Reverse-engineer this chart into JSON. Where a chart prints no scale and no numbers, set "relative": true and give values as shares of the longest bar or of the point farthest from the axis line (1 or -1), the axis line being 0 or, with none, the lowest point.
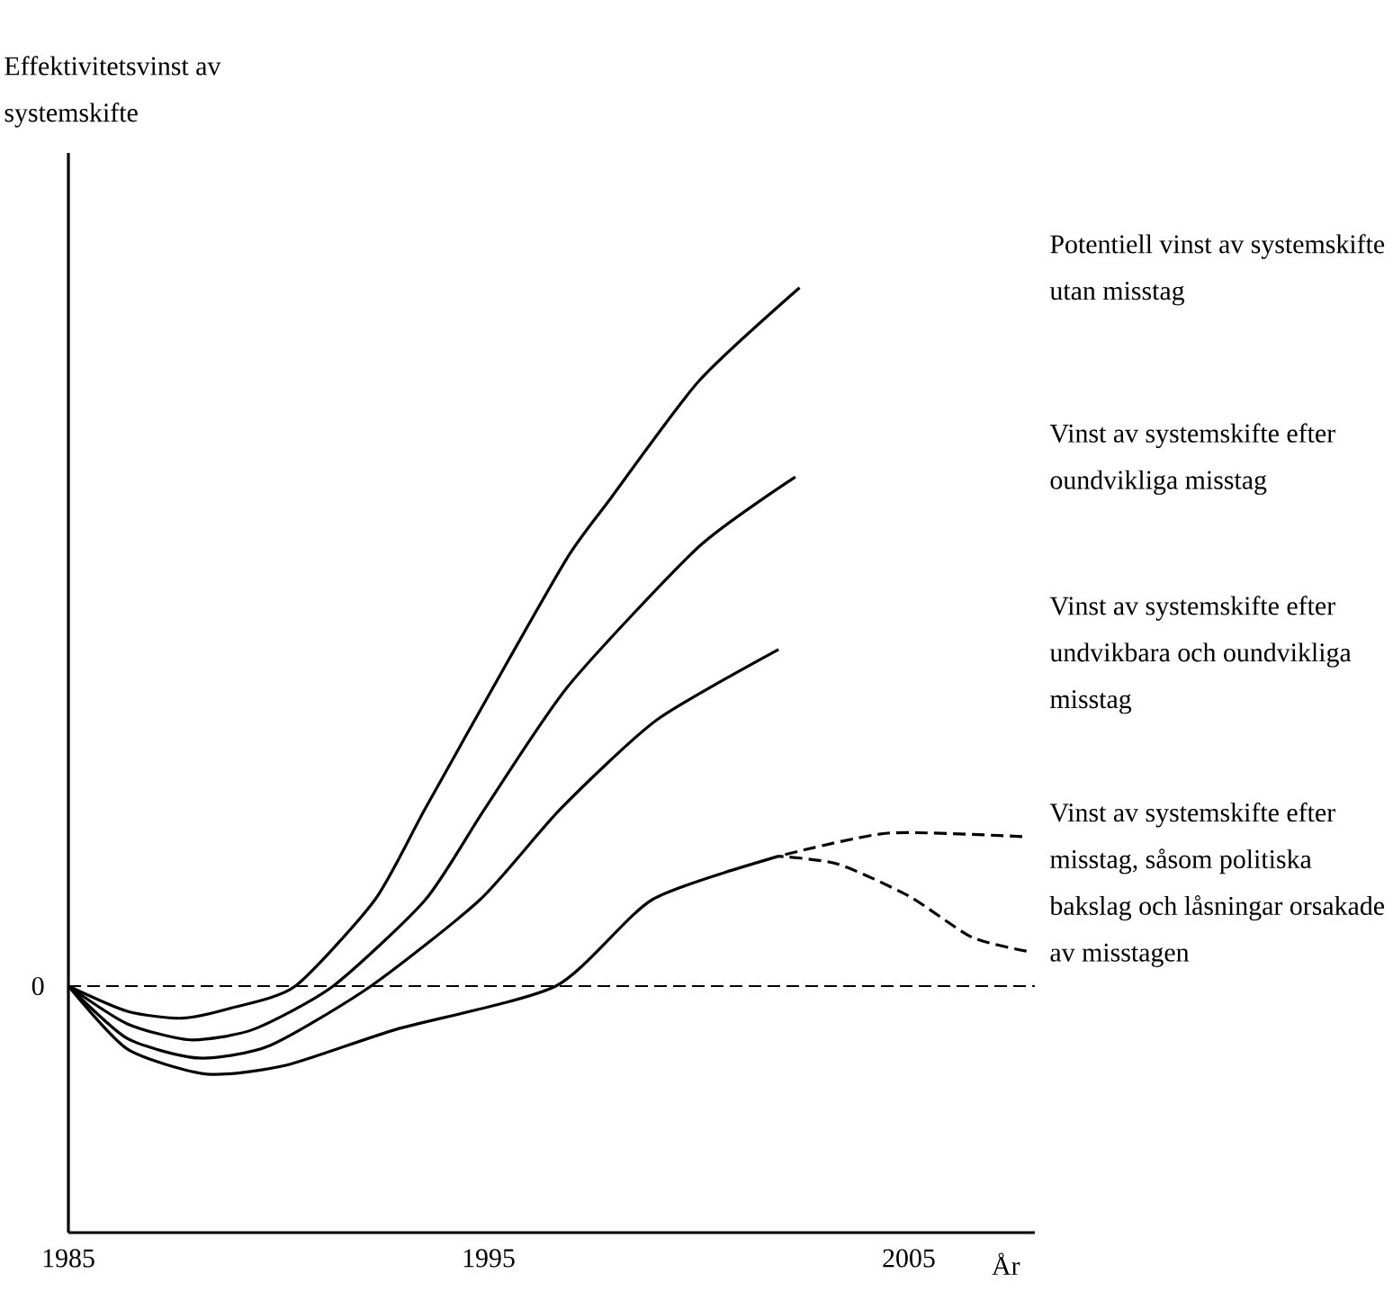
{
  "chart_data": {
    "type": "line",
    "annotations": [
      "Effektivitetsvinst av systemskifte"
    ],
    "xlabel": "År",
    "relative": true,
    "xlim": [
      1985,
      2008
    ],
    "xticks": [
      1985,
      1995,
      2005
    ],
    "ref_lines": [
      {
        "axis": "y",
        "value": 0,
        "label": "0",
        "line_style": "dashed"
      }
    ],
    "series": [
      {
        "name": "Potentiell vinst av systemskifte utan misstag",
        "color": "#000000",
        "line_style": "solid",
        "x": [
          1985,
          1986.4,
          1987.7,
          1988.9,
          1990.4,
          1992.3,
          1993.5,
          1995.4,
          1996.9,
          1997.9,
          2000,
          2002.4
        ],
        "values": [
          0,
          -0.036,
          -0.046,
          -0.031,
          0,
          0.124,
          0.255,
          0.459,
          0.616,
          0.698,
          0.866,
          1
        ]
      },
      {
        "name": "Vinst av systemskifte efter oundvikliga misstag",
        "color": "#000000",
        "line_style": "solid",
        "x": [
          1985,
          1986.4,
          1987.9,
          1989.4,
          1991.3,
          1993.5,
          1994.9,
          1996.9,
          2000,
          2002.3
        ],
        "values": [
          0,
          -0.054,
          -0.077,
          -0.062,
          0,
          0.124,
          0.253,
          0.43,
          0.629,
          0.729
        ]
      },
      {
        "name": "Vinst av systemskifte efter undvikbara och oundvikliga misstag",
        "color": "#000000",
        "line_style": "solid",
        "x": [
          1985,
          1986.4,
          1988.1,
          1989.8,
          1992.2,
          1994.8,
          1996.7,
          1999,
          2001.9
        ],
        "values": [
          0,
          -0.075,
          -0.103,
          -0.085,
          0,
          0.124,
          0.253,
          0.381,
          0.482
        ]
      },
      {
        "name": "Vinst av systemskifte efter misstag, såsom politiska bakslag och låsningar orsakade av misstagen",
        "color": "#000000",
        "line_style": "solid",
        "x": [
          1985,
          1986.4,
          1988.3,
          1990.2,
          1992.8,
          1996.6,
          1998.9,
          2001.9
        ],
        "values": [
          0,
          -0.09,
          -0.126,
          -0.113,
          -0.062,
          0,
          0.124,
          0.186
        ]
      },
      {
        "color": "#000000",
        "line_style": "dashed",
        "x": [
          2001.9,
          2004.5,
          2007.7
        ],
        "values": [
          0.186,
          0.219,
          0.214
        ]
      },
      {
        "color": "#000000",
        "line_style": "dashed",
        "x": [
          2001.9,
          2003.3,
          2005,
          2006.5,
          2007.8
        ],
        "values": [
          0.186,
          0.175,
          0.129,
          0.07,
          0.05
        ]
      }
    ]
  }
}
